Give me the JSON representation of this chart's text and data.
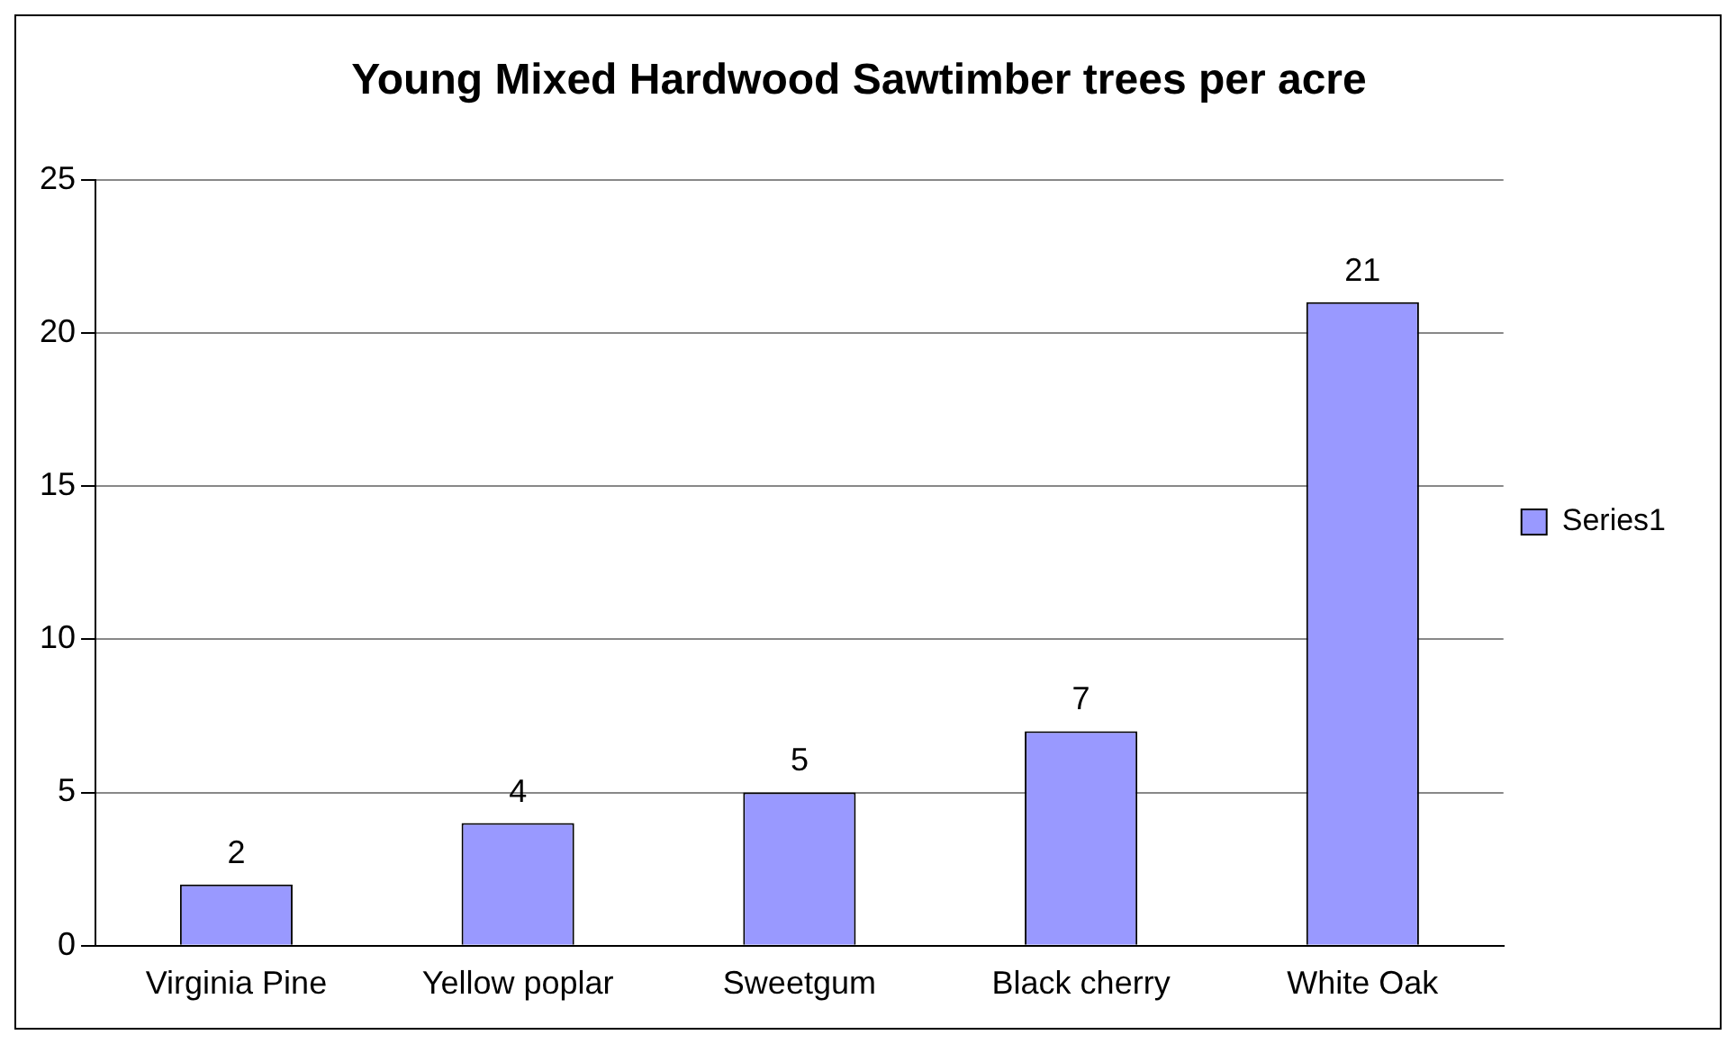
{
  "chart_data": {
    "type": "bar",
    "title": "Young Mixed Hardwood Sawtimber trees per acre",
    "categories": [
      "Virginia Pine",
      "Yellow poplar",
      "Sweetgum",
      "Black cherry",
      "White Oak"
    ],
    "series": [
      {
        "name": "Series1",
        "color": "#9999ff",
        "values": [
          2,
          4,
          5,
          7,
          21
        ]
      }
    ],
    "ylim": [
      0,
      25
    ],
    "yticks": [
      0,
      5,
      10,
      15,
      20,
      25
    ],
    "grid": "y",
    "legend": "right",
    "data_labels": true
  }
}
